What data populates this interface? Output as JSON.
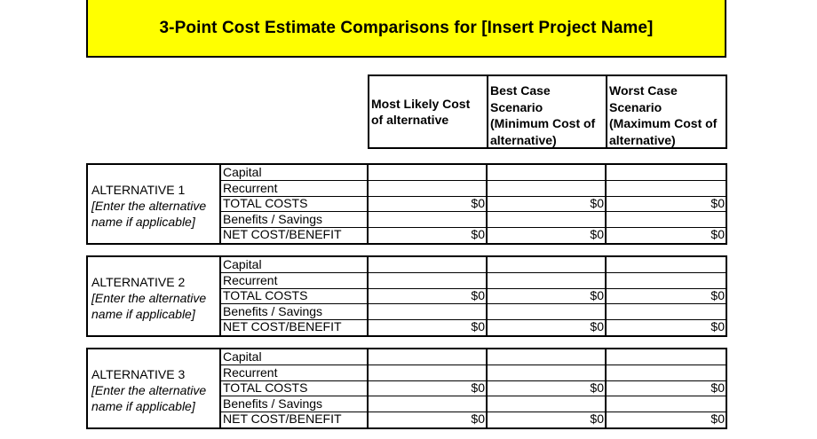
{
  "title": "3-Point Cost Estimate Comparisons for [Insert Project Name]",
  "columns": [
    "Most Likely Cost\nof alternative",
    "Best Case\nScenario\n(Minimum Cost of\nalternative)",
    "Worst Case\nScenario\n(Maximum Cost of\nalternative)"
  ],
  "alternatives": [
    {
      "name": "ALTERNATIVE 1",
      "note": "[Enter the alternative name if applicable]",
      "rows": [
        {
          "label": "Capital",
          "most": "",
          "best": "",
          "worst": ""
        },
        {
          "label": "Recurrent",
          "most": "",
          "best": "",
          "worst": ""
        },
        {
          "label": "TOTAL COSTS",
          "most": "$0",
          "best": "$0",
          "worst": "$0"
        },
        {
          "label": "Benefits / Savings",
          "most": "",
          "best": "",
          "worst": ""
        },
        {
          "label": "NET COST/BENEFIT",
          "most": "$0",
          "best": "$0",
          "worst": "$0"
        }
      ]
    },
    {
      "name": "ALTERNATIVE 2",
      "note": "[Enter the alternative name if applicable]",
      "rows": [
        {
          "label": "Capital",
          "most": "",
          "best": "",
          "worst": ""
        },
        {
          "label": "Recurrent",
          "most": "",
          "best": "",
          "worst": ""
        },
        {
          "label": "TOTAL COSTS",
          "most": "$0",
          "best": "$0",
          "worst": "$0"
        },
        {
          "label": "Benefits / Savings",
          "most": "",
          "best": "",
          "worst": ""
        },
        {
          "label": "NET COST/BENEFIT",
          "most": "$0",
          "best": "$0",
          "worst": "$0"
        }
      ]
    },
    {
      "name": "ALTERNATIVE 3",
      "note": "[Enter the alternative name if applicable]",
      "rows": [
        {
          "label": "Capital",
          "most": "",
          "best": "",
          "worst": ""
        },
        {
          "label": "Recurrent",
          "most": "",
          "best": "",
          "worst": ""
        },
        {
          "label": "TOTAL COSTS",
          "most": "$0",
          "best": "$0",
          "worst": "$0"
        },
        {
          "label": "Benefits / Savings",
          "most": "",
          "best": "",
          "worst": ""
        },
        {
          "label": "NET COST/BENEFIT",
          "most": "$0",
          "best": "$0",
          "worst": "$0"
        }
      ]
    }
  ]
}
